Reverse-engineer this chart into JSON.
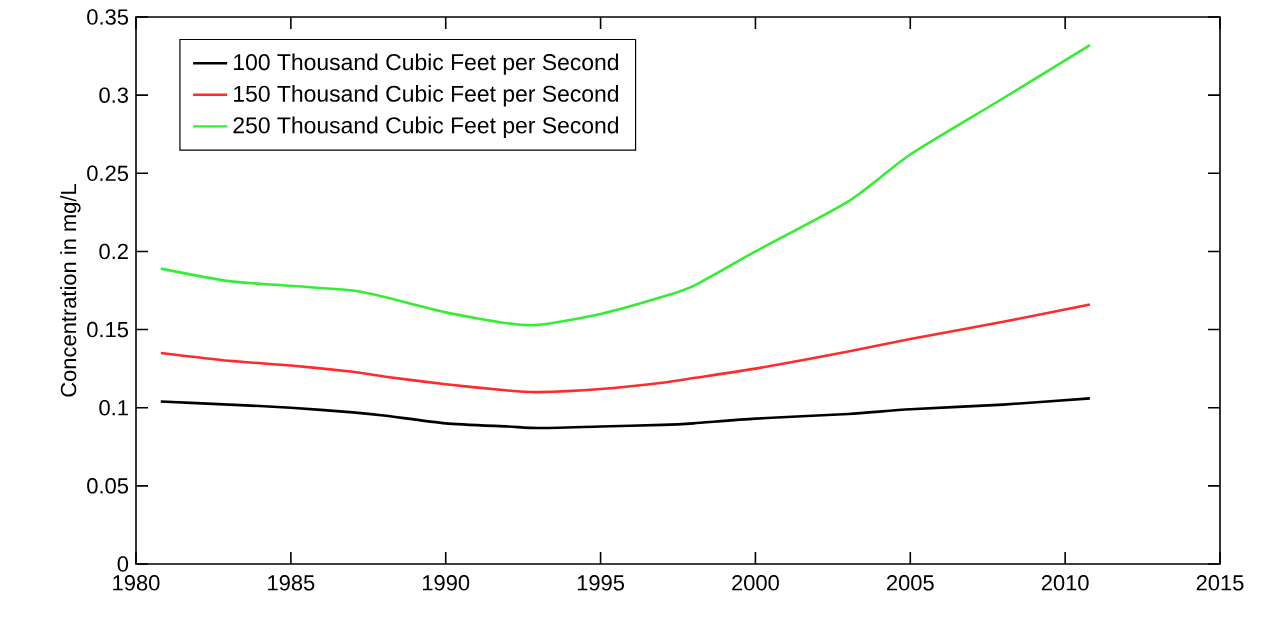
{
  "chart_data": {
    "type": "line",
    "ylabel": "Concentration in mg/L",
    "xlim": [
      1980,
      2015
    ],
    "xticks": [
      1980,
      1985,
      1990,
      1995,
      2000,
      2005,
      2010,
      2015
    ],
    "ylim": [
      0,
      0.35
    ],
    "yticks": [
      0,
      0.05,
      0.1,
      0.15,
      0.2,
      0.25,
      0.3,
      0.35
    ],
    "x": [
      1980.8,
      1983,
      1985,
      1987,
      1988,
      1990,
      1992,
      1993,
      1995,
      1997,
      1998,
      2000,
      2003,
      2005,
      2008,
      2010.8
    ],
    "grid": false,
    "legend": "top left",
    "marker": "none",
    "line_style": "solid",
    "series": [
      {
        "name": "100 Thousand Cubic Feet per Second",
        "color": "#000000",
        "values": [
          0.104,
          0.102,
          0.1,
          0.097,
          0.095,
          0.09,
          0.088,
          0.087,
          0.088,
          0.089,
          0.09,
          0.093,
          0.096,
          0.099,
          0.102,
          0.106
        ]
      },
      {
        "name": "150 Thousand Cubic Feet per Second",
        "color": "#ff2a2a",
        "values": [
          0.135,
          0.13,
          0.127,
          0.123,
          0.12,
          0.115,
          0.111,
          0.11,
          0.112,
          0.116,
          0.119,
          0.125,
          0.136,
          0.144,
          0.155,
          0.166
        ]
      },
      {
        "name": "250 Thousand Cubic Feet per Second",
        "color": "#33ee33",
        "values": [
          0.189,
          0.181,
          0.178,
          0.175,
          0.171,
          0.161,
          0.154,
          0.153,
          0.16,
          0.171,
          0.178,
          0.2,
          0.232,
          0.262,
          0.298,
          0.332
        ]
      }
    ]
  }
}
